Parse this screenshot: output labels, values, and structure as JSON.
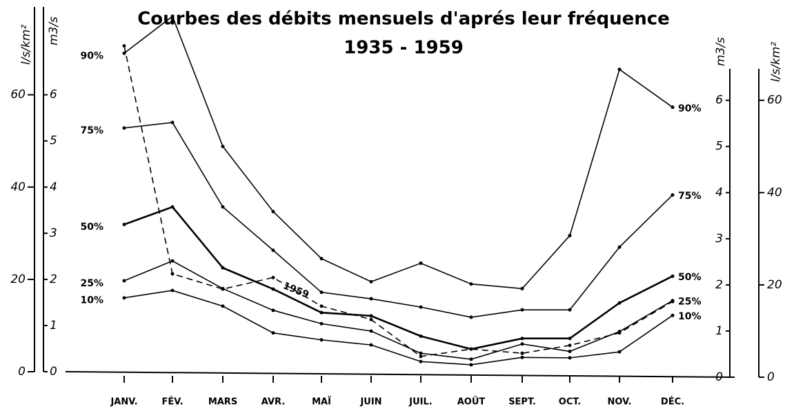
{
  "chart_data": {
    "type": "line",
    "title": "Courbes des débits mensuels d'aprés leur fréquence",
    "subtitle": "1935 - 1959",
    "y_label": "m3/s",
    "y2_label": "l/s/km²",
    "categories": [
      "JANV.",
      "FÉV.",
      "MARS",
      "AVR.",
      "MAÏ",
      "JUIN",
      "JUIL.",
      "AOÛT",
      "SEPT.",
      "OCT.",
      "NOV.",
      "DÉC."
    ],
    "series": [
      {
        "name": "90%",
        "color": "#000000",
        "values": [
          6.9,
          7.7,
          4.88,
          3.47,
          2.45,
          1.95,
          2.35,
          1.9,
          1.8,
          2.95,
          6.55,
          5.73
        ]
      },
      {
        "name": "75%",
        "color": "#000000",
        "values": [
          5.28,
          5.4,
          3.57,
          2.63,
          1.72,
          1.58,
          1.4,
          1.18,
          1.34,
          1.34,
          2.7,
          3.83
        ]
      },
      {
        "name": "50%",
        "color": "#000000",
        "values": [
          3.19,
          3.57,
          2.25,
          1.79,
          1.28,
          1.21,
          0.77,
          0.49,
          0.72,
          0.72,
          1.49,
          2.07
        ]
      },
      {
        "name": "25%",
        "color": "#000000",
        "values": [
          1.97,
          2.4,
          1.8,
          1.33,
          1.04,
          0.88,
          0.4,
          0.27,
          0.6,
          0.44,
          0.87,
          1.54
        ]
      },
      {
        "name": "10%",
        "color": "#000000",
        "values": [
          1.6,
          1.76,
          1.42,
          0.84,
          0.69,
          0.58,
          0.22,
          0.15,
          0.31,
          0.3,
          0.43,
          1.22
        ]
      },
      {
        "name": "1959",
        "color": "#000000",
        "style": "dashed",
        "values": [
          7.06,
          2.12,
          1.79,
          2.04,
          1.42,
          1.13,
          0.33,
          0.49,
          0.4,
          0.57,
          0.84,
          1.52
        ]
      }
    ],
    "ylim": [
      0,
      7.8
    ],
    "yticks": [
      0,
      1,
      2,
      3,
      4,
      5,
      6
    ],
    "y2lim": [
      0,
      78
    ],
    "y2ticks": [
      0,
      20,
      40,
      60
    ],
    "grid": false
  }
}
